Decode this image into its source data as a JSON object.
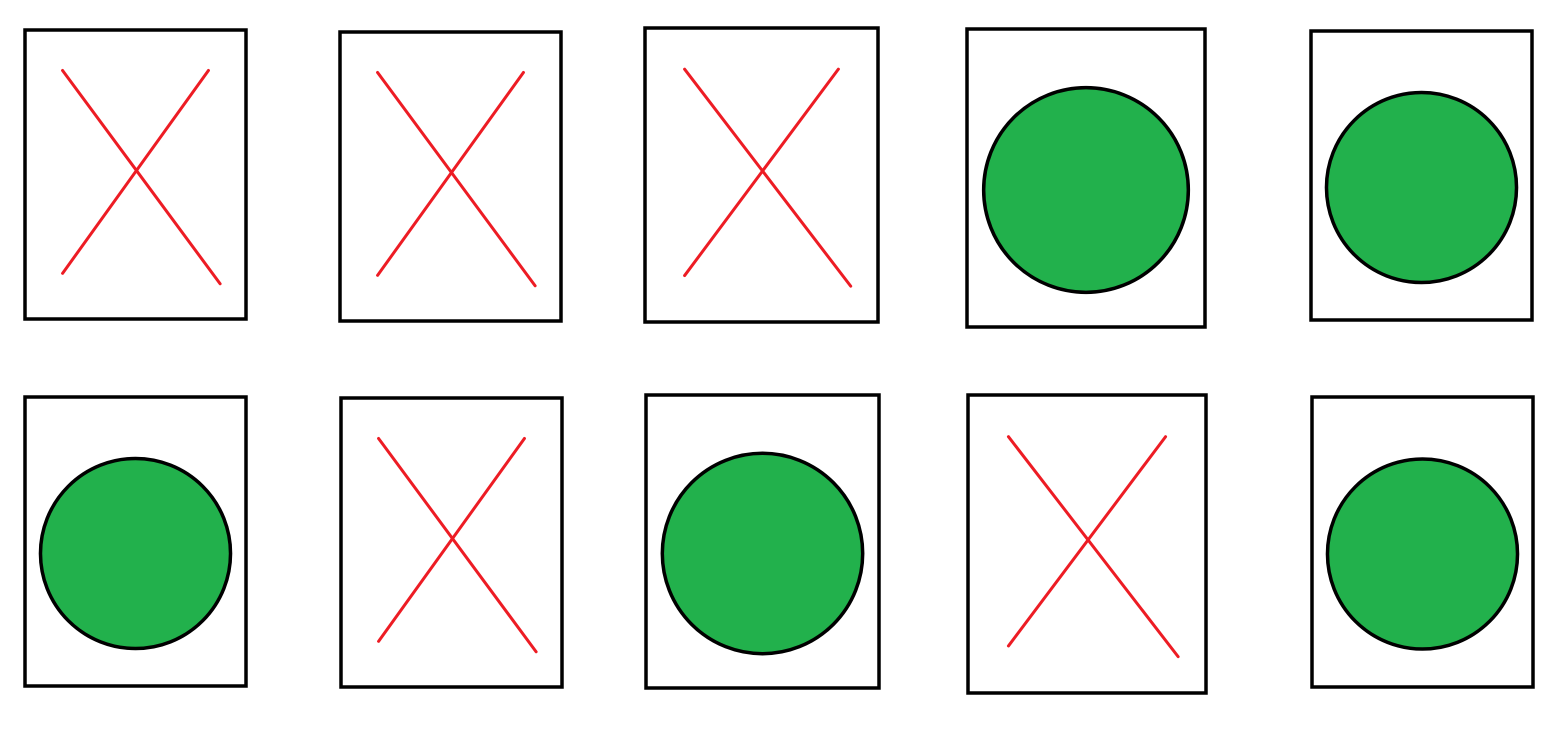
{
  "colors": {
    "card_border": "#000000",
    "card_fill": "#ffffff",
    "x_mark": "#ed1c24",
    "circle_fill": "#22b14c",
    "circle_border": "#000000"
  },
  "rows": [
    {
      "cards": [
        {
          "mark": "x-icon"
        },
        {
          "mark": "x-icon"
        },
        {
          "mark": "x-icon"
        },
        {
          "mark": "circle-icon"
        },
        {
          "mark": "circle-icon"
        }
      ]
    },
    {
      "cards": [
        {
          "mark": "circle-icon"
        },
        {
          "mark": "x-icon"
        },
        {
          "mark": "circle-icon"
        },
        {
          "mark": "x-icon"
        },
        {
          "mark": "circle-icon"
        }
      ]
    }
  ]
}
